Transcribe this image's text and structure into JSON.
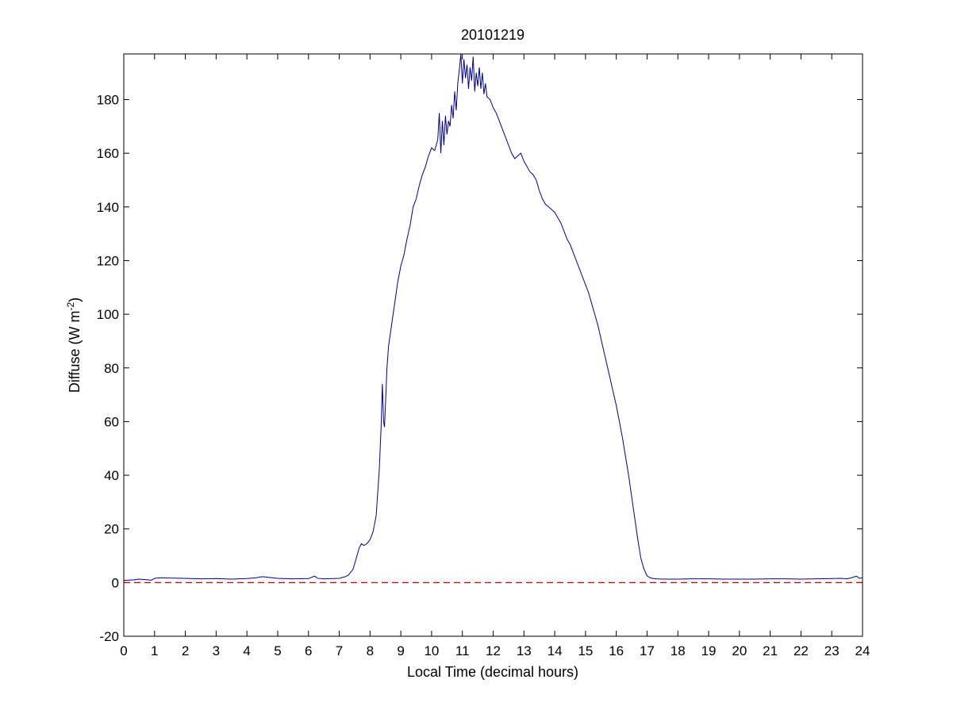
{
  "chart_data": {
    "type": "line",
    "title": "20101219",
    "xlabel": "Local Time (decimal hours)",
    "ylabel_main": "Diffuse (W m",
    "ylabel_sup": "-2",
    "ylabel_close": ")",
    "xlim": [
      0,
      24
    ],
    "ylim": [
      -20,
      197
    ],
    "xticks": [
      0,
      1,
      2,
      3,
      4,
      5,
      6,
      7,
      8,
      9,
      10,
      11,
      12,
      13,
      14,
      15,
      16,
      17,
      18,
      19,
      20,
      21,
      22,
      23,
      24
    ],
    "yticks": [
      -20,
      0,
      20,
      40,
      60,
      80,
      100,
      120,
      140,
      160,
      180
    ],
    "grid": false,
    "colors": {
      "series": "#00008b",
      "reference": "#cc0000",
      "axes": "#000000"
    },
    "reference_line": {
      "y": 0,
      "style": "dashed"
    },
    "series": [
      {
        "x": [
          0,
          0.3,
          0.5,
          0.8,
          0.9,
          1.0,
          1.2,
          1.5,
          2.0,
          2.5,
          3.0,
          3.5,
          4.0,
          4.3,
          4.5,
          5.0,
          5.5,
          6.0,
          6.2,
          6.3,
          6.5,
          7.0,
          7.2,
          7.3,
          7.45,
          7.55,
          7.65,
          7.72,
          7.8,
          7.9,
          8.0,
          8.1,
          8.2,
          8.3,
          8.36,
          8.4,
          8.44,
          8.47,
          8.5,
          8.55,
          8.6,
          8.7,
          8.8,
          8.9,
          9.0,
          9.1,
          9.2,
          9.3,
          9.4,
          9.5,
          9.6,
          9.7,
          9.8,
          9.9,
          10.0,
          10.1,
          10.2,
          10.25,
          10.3,
          10.35,
          10.4,
          10.45,
          10.5,
          10.55,
          10.6,
          10.65,
          10.7,
          10.75,
          10.8,
          10.85,
          10.9,
          10.95,
          11.0,
          11.05,
          11.1,
          11.15,
          11.2,
          11.25,
          11.3,
          11.35,
          11.4,
          11.45,
          11.5,
          11.55,
          11.6,
          11.65,
          11.7,
          11.75,
          11.8,
          11.9,
          12.0,
          12.1,
          12.2,
          12.3,
          12.4,
          12.5,
          12.6,
          12.7,
          12.8,
          12.9,
          13.0,
          13.1,
          13.2,
          13.3,
          13.4,
          13.5,
          13.6,
          13.7,
          13.8,
          13.9,
          14.0,
          14.1,
          14.2,
          14.3,
          14.4,
          14.5,
          14.6,
          14.7,
          14.8,
          14.9,
          15.0,
          15.1,
          15.2,
          15.3,
          15.4,
          15.5,
          15.6,
          15.7,
          15.8,
          15.9,
          16.0,
          16.1,
          16.2,
          16.3,
          16.4,
          16.5,
          16.6,
          16.7,
          16.8,
          16.9,
          17.0,
          17.1,
          17.2,
          17.3,
          17.5,
          18.0,
          18.5,
          19.0,
          19.5,
          20.0,
          20.5,
          21.0,
          21.5,
          22.0,
          22.5,
          23.0,
          23.3,
          23.5,
          23.7,
          23.8,
          23.9,
          24.0
        ],
        "y": [
          0.8,
          1.0,
          1.3,
          1.0,
          0.9,
          1.6,
          1.8,
          1.7,
          1.6,
          1.4,
          1.5,
          1.3,
          1.5,
          1.8,
          2.2,
          1.6,
          1.4,
          1.5,
          2.4,
          1.6,
          1.4,
          1.6,
          2.2,
          2.8,
          5.0,
          9.0,
          13.0,
          14.5,
          13.8,
          14.5,
          16.0,
          19.0,
          25.0,
          42.0,
          58.0,
          74.0,
          60.0,
          58.0,
          66.0,
          80.0,
          88.0,
          96.0,
          104.0,
          112.0,
          118.0,
          122.0,
          128.0,
          133.0,
          140.0,
          143.0,
          148.0,
          152.0,
          155.0,
          159.0,
          162.0,
          161.0,
          165.0,
          175.0,
          160.0,
          172.0,
          163.0,
          174.0,
          167.0,
          172.0,
          170.0,
          178.0,
          173.0,
          183.0,
          176.0,
          186.0,
          191.0,
          197.0,
          186.0,
          195.0,
          188.0,
          193.0,
          184.0,
          192.0,
          187.0,
          196.0,
          183.0,
          190.0,
          185.0,
          192.0,
          184.0,
          190.0,
          182.0,
          186.0,
          181.0,
          180.0,
          177.0,
          175.0,
          172.0,
          169.0,
          166.0,
          163.0,
          160.0,
          158.0,
          159.0,
          160.0,
          157.0,
          155.0,
          153.0,
          152.0,
          150.0,
          146.0,
          143.0,
          141.0,
          140.0,
          139.0,
          138.0,
          136.0,
          134.0,
          131.0,
          128.0,
          126.0,
          123.0,
          120.0,
          117.0,
          114.0,
          111.0,
          108.0,
          104.0,
          100.0,
          96.0,
          91.0,
          86.0,
          81.0,
          76.0,
          71.0,
          66.0,
          60.0,
          54.0,
          47.0,
          40.0,
          32.0,
          24.0,
          16.0,
          9.0,
          5.0,
          2.5,
          1.8,
          1.5,
          1.4,
          1.3,
          1.3,
          1.4,
          1.4,
          1.3,
          1.3,
          1.3,
          1.4,
          1.4,
          1.3,
          1.4,
          1.5,
          1.6,
          1.4,
          2.0,
          2.4,
          1.6,
          1.8
        ]
      }
    ]
  }
}
